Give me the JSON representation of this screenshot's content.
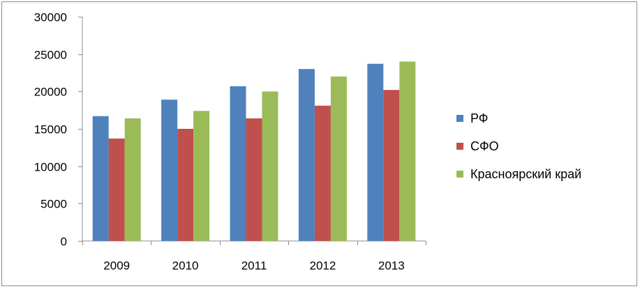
{
  "chart_data": {
    "type": "bar",
    "title": "",
    "xlabel": "",
    "ylabel": "",
    "categories": [
      "2009",
      "2010",
      "2011",
      "2012",
      "2013"
    ],
    "ylim": [
      0,
      30000
    ],
    "yticks": [
      0,
      5000,
      10000,
      15000,
      20000,
      25000,
      30000
    ],
    "grid": false,
    "legend_position": "right",
    "series": [
      {
        "name": "РФ",
        "color": "#4f81bd",
        "values": [
          16700,
          18900,
          20700,
          23000,
          23700
        ]
      },
      {
        "name": "СФО",
        "color": "#c0504d",
        "values": [
          13700,
          15000,
          16400,
          18100,
          20200
        ]
      },
      {
        "name": "Красноярский край",
        "color": "#9bbb59",
        "values": [
          16400,
          17400,
          20000,
          22000,
          24000
        ]
      }
    ]
  }
}
